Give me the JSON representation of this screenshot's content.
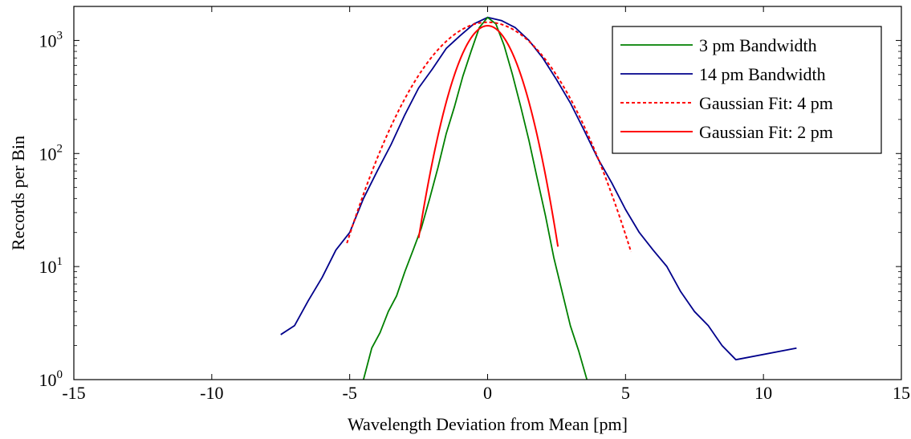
{
  "chart_data": {
    "type": "line",
    "title": "",
    "xlabel": "Wavelength Deviation from Mean [pm]",
    "ylabel": "Records per Bin",
    "xlim": [
      -15,
      15
    ],
    "ylim": [
      1,
      2000
    ],
    "yscale": "log",
    "grid": false,
    "legend_position": "top-right",
    "x_ticks": [
      -15,
      -10,
      -5,
      0,
      5,
      10,
      15
    ],
    "x_tick_labels": [
      "-15",
      "-10",
      "-5",
      "0",
      "5",
      "10",
      "15"
    ],
    "y_ticks": [
      1,
      10,
      100,
      1000
    ],
    "y_tick_labels": [
      "10^0",
      "10^1",
      "10^2",
      "10^3"
    ],
    "series": [
      {
        "name": "3 pm Bandwidth",
        "color": "#008000",
        "style": "solid",
        "x": [
          -4.5,
          -4.2,
          -3.9,
          -3.6,
          -3.3,
          -3.0,
          -2.7,
          -2.4,
          -2.1,
          -1.8,
          -1.5,
          -1.2,
          -0.9,
          -0.6,
          -0.3,
          0.0,
          0.3,
          0.6,
          0.9,
          1.2,
          1.5,
          1.8,
          2.1,
          2.4,
          2.7,
          3.0,
          3.3,
          3.6
        ],
        "y": [
          1.0,
          1.9,
          2.6,
          4.0,
          5.5,
          9.0,
          14,
          22,
          40,
          75,
          150,
          260,
          480,
          800,
          1300,
          1600,
          1400,
          900,
          500,
          260,
          130,
          60,
          28,
          12,
          6.0,
          3.0,
          1.8,
          1.0
        ]
      },
      {
        "name": "14 pm Bandwidth",
        "color": "#00008B",
        "style": "solid",
        "x": [
          -7.5,
          -7.0,
          -6.5,
          -6.0,
          -5.5,
          -5.0,
          -4.5,
          -4.0,
          -3.5,
          -3.0,
          -2.5,
          -2.0,
          -1.5,
          -1.0,
          -0.5,
          0.0,
          0.5,
          1.0,
          1.5,
          2.0,
          2.5,
          3.0,
          3.5,
          4.0,
          4.5,
          5.0,
          5.5,
          6.0,
          6.5,
          7.0,
          7.5,
          8.0,
          8.5,
          9.0,
          11.2
        ],
        "y": [
          2.5,
          3.0,
          5.0,
          8.0,
          14,
          20,
          40,
          70,
          120,
          220,
          380,
          560,
          850,
          1100,
          1400,
          1600,
          1500,
          1300,
          1000,
          700,
          450,
          280,
          160,
          90,
          55,
          32,
          20,
          14,
          10,
          6.0,
          4.0,
          3.0,
          2.0,
          1.5,
          1.9
        ]
      },
      {
        "name": "Gaussian Fit: 4 pm",
        "color": "#FF0000",
        "style": "dashed",
        "fit": {
          "amplitude": 1450,
          "center": 0.0,
          "sigma": 1.7
        },
        "x_range": [
          -5.1,
          5.2
        ]
      },
      {
        "name": "Gaussian Fit: 2 pm",
        "color": "#FF0000",
        "style": "solid",
        "fit": {
          "amplitude": 1350,
          "center": 0.0,
          "sigma": 0.85
        },
        "x_range": [
          -2.5,
          2.55
        ]
      }
    ]
  }
}
